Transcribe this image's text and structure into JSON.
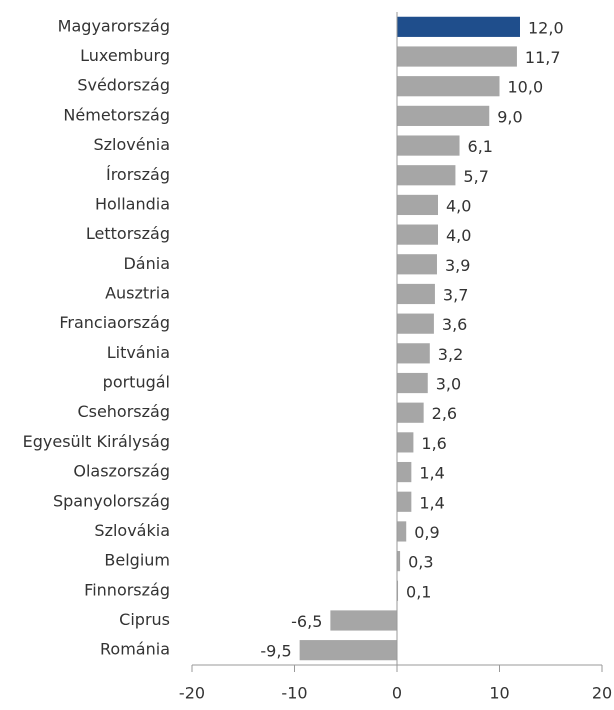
{
  "chart_data": {
    "type": "barh",
    "categories": [
      "Magyarország",
      "Luxemburg",
      "Svédország",
      "Németország",
      "Szlovénia",
      "Írország",
      "Hollandia",
      "Lettország",
      "Dánia",
      "Ausztria",
      "Franciaország",
      "Litvánia",
      "portugál",
      "Csehország",
      "Egyesült Királyság",
      "Olaszország",
      "Spanyolország",
      "Szlovákia",
      "Belgium",
      "Finnország",
      "Ciprus",
      "Románia"
    ],
    "values": [
      12.0,
      11.7,
      10.0,
      9.0,
      6.1,
      5.7,
      4.0,
      4.0,
      3.9,
      3.7,
      3.6,
      3.2,
      3.0,
      2.6,
      1.6,
      1.4,
      1.4,
      0.9,
      0.3,
      0.1,
      -6.5,
      -9.5
    ],
    "value_labels": [
      "12,0",
      "11,7",
      "10,0",
      "9,0",
      "6,1",
      "5,7",
      "4,0",
      "4,0",
      "3,9",
      "3,7",
      "3,6",
      "3,2",
      "3,0",
      "2,6",
      "1,6",
      "1,4",
      "1,4",
      "0,9",
      "0,3",
      "0,1",
      "-6,5",
      "-9,5"
    ],
    "colors": [
      "#1f4e8c",
      "#a6a6a6",
      "#a6a6a6",
      "#a6a6a6",
      "#a6a6a6",
      "#a6a6a6",
      "#a6a6a6",
      "#a6a6a6",
      "#a6a6a6",
      "#a6a6a6",
      "#a6a6a6",
      "#a6a6a6",
      "#a6a6a6",
      "#a6a6a6",
      "#a6a6a6",
      "#a6a6a6",
      "#a6a6a6",
      "#a6a6a6",
      "#a6a6a6",
      "#a6a6a6",
      "#a6a6a6",
      "#a6a6a6"
    ],
    "xlim": [
      -20,
      20
    ],
    "xticks": [
      -20,
      -10,
      0,
      10,
      20
    ]
  }
}
